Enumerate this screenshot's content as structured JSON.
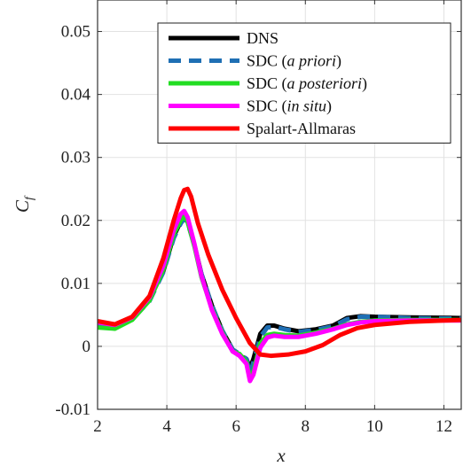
{
  "chart_data": {
    "type": "line",
    "xlabel": "x",
    "ylabel": "C_f",
    "xlim": [
      2,
      12.5
    ],
    "ylim": [
      -0.01,
      0.055
    ],
    "x_ticks": [
      2,
      4,
      6,
      8,
      10,
      12
    ],
    "x_tick_labels": [
      "2",
      "4",
      "6",
      "8",
      "10",
      "12"
    ],
    "y_ticks": [
      -0.01,
      0,
      0.01,
      0.02,
      0.03,
      0.04,
      0.05
    ],
    "y_tick_labels": [
      "-0.01",
      "0",
      "0.01",
      "0.02",
      "0.03",
      "0.04",
      "0.05"
    ],
    "grid": true,
    "legend_position": "top-right",
    "series": [
      {
        "name": "DNS",
        "name_plain": "DNS",
        "name_italic": "",
        "name_suffix": "",
        "color": "#000000",
        "dash": "solid",
        "points": [
          [
            2.0,
            0.0035
          ],
          [
            2.5,
            0.0032
          ],
          [
            3.0,
            0.0045
          ],
          [
            3.5,
            0.0075
          ],
          [
            3.9,
            0.012
          ],
          [
            4.2,
            0.0175
          ],
          [
            4.4,
            0.0198
          ],
          [
            4.5,
            0.0205
          ],
          [
            4.6,
            0.0198
          ],
          [
            4.8,
            0.016
          ],
          [
            5.0,
            0.0115
          ],
          [
            5.3,
            0.0065
          ],
          [
            5.6,
            0.0025
          ],
          [
            5.9,
            -0.0005
          ],
          [
            6.1,
            -0.0015
          ],
          [
            6.3,
            -0.002
          ],
          [
            6.4,
            -0.0035
          ],
          [
            6.5,
            -0.002
          ],
          [
            6.7,
            0.002
          ],
          [
            6.9,
            0.0033
          ],
          [
            7.1,
            0.0033
          ],
          [
            7.4,
            0.0028
          ],
          [
            7.8,
            0.0024
          ],
          [
            8.3,
            0.0027
          ],
          [
            8.8,
            0.0033
          ],
          [
            9.2,
            0.0045
          ],
          [
            9.6,
            0.0048
          ],
          [
            10.0,
            0.0047
          ],
          [
            11.0,
            0.0046
          ],
          [
            12.5,
            0.0045
          ]
        ]
      },
      {
        "name": "SDC (a priori)",
        "name_plain": "SDC (",
        "name_italic": "a priori",
        "name_suffix": ")",
        "color": "#1f6fb4",
        "dash": "dashed",
        "points": [
          [
            2.0,
            0.0032
          ],
          [
            2.5,
            0.003
          ],
          [
            3.0,
            0.0043
          ],
          [
            3.5,
            0.0072
          ],
          [
            3.9,
            0.0118
          ],
          [
            4.2,
            0.0172
          ],
          [
            4.4,
            0.0195
          ],
          [
            4.5,
            0.0203
          ],
          [
            4.6,
            0.0196
          ],
          [
            4.8,
            0.016
          ],
          [
            5.0,
            0.0115
          ],
          [
            5.3,
            0.0065
          ],
          [
            5.6,
            0.0025
          ],
          [
            5.9,
            -0.0005
          ],
          [
            6.1,
            -0.0012
          ],
          [
            6.3,
            -0.002
          ],
          [
            6.4,
            -0.0045
          ],
          [
            6.5,
            -0.0025
          ],
          [
            6.7,
            0.0015
          ],
          [
            6.9,
            0.003
          ],
          [
            7.1,
            0.0031
          ],
          [
            7.4,
            0.0027
          ],
          [
            7.8,
            0.0023
          ],
          [
            8.3,
            0.0026
          ],
          [
            8.8,
            0.0032
          ],
          [
            9.2,
            0.0043
          ],
          [
            9.6,
            0.0047
          ],
          [
            10.0,
            0.0047
          ],
          [
            11.0,
            0.0045
          ],
          [
            12.5,
            0.0044
          ]
        ]
      },
      {
        "name": "SDC (a posteriori)",
        "name_plain": "SDC (",
        "name_italic": "a posteriori",
        "name_suffix": ")",
        "color": "#22dd22",
        "dash": "solid",
        "points": [
          [
            2.0,
            0.003
          ],
          [
            2.5,
            0.0028
          ],
          [
            3.0,
            0.0042
          ],
          [
            3.5,
            0.0073
          ],
          [
            3.9,
            0.0122
          ],
          [
            4.2,
            0.0178
          ],
          [
            4.4,
            0.02
          ],
          [
            4.5,
            0.0207
          ],
          [
            4.6,
            0.0198
          ],
          [
            4.8,
            0.0158
          ],
          [
            5.0,
            0.011
          ],
          [
            5.3,
            0.006
          ],
          [
            5.6,
            0.0022
          ],
          [
            5.9,
            -0.0008
          ],
          [
            6.1,
            -0.0012
          ],
          [
            6.3,
            -0.0025
          ],
          [
            6.4,
            -0.005
          ],
          [
            6.5,
            -0.004
          ],
          [
            6.7,
            0.0005
          ],
          [
            6.9,
            0.0018
          ],
          [
            7.1,
            0.002
          ],
          [
            7.4,
            0.0018
          ],
          [
            7.8,
            0.0017
          ],
          [
            8.3,
            0.0022
          ],
          [
            8.8,
            0.0028
          ],
          [
            9.2,
            0.0035
          ],
          [
            9.6,
            0.0039
          ],
          [
            10.0,
            0.0041
          ],
          [
            11.0,
            0.0042
          ],
          [
            12.5,
            0.0042
          ]
        ]
      },
      {
        "name": "SDC (in situ)",
        "name_plain": "SDC (",
        "name_italic": "in situ",
        "name_suffix": ")",
        "color": "#ff00ff",
        "dash": "solid",
        "points": [
          [
            2.0,
            0.0038
          ],
          [
            2.5,
            0.0034
          ],
          [
            3.0,
            0.0046
          ],
          [
            3.5,
            0.0078
          ],
          [
            3.9,
            0.0128
          ],
          [
            4.2,
            0.0185
          ],
          [
            4.4,
            0.021
          ],
          [
            4.5,
            0.0215
          ],
          [
            4.6,
            0.0205
          ],
          [
            4.8,
            0.0162
          ],
          [
            5.0,
            0.0112
          ],
          [
            5.3,
            0.0058
          ],
          [
            5.6,
            0.002
          ],
          [
            5.9,
            -0.0008
          ],
          [
            6.1,
            -0.0015
          ],
          [
            6.3,
            -0.0028
          ],
          [
            6.4,
            -0.0055
          ],
          [
            6.5,
            -0.0045
          ],
          [
            6.7,
            -0.0002
          ],
          [
            6.9,
            0.0014
          ],
          [
            7.1,
            0.0017
          ],
          [
            7.4,
            0.0015
          ],
          [
            7.8,
            0.0015
          ],
          [
            8.3,
            0.002
          ],
          [
            8.8,
            0.0027
          ],
          [
            9.2,
            0.0034
          ],
          [
            9.6,
            0.0038
          ],
          [
            10.0,
            0.004
          ],
          [
            11.0,
            0.0041
          ],
          [
            12.5,
            0.0041
          ]
        ]
      },
      {
        "name": "Spalart-Allmaras",
        "name_plain": "Spalart-Allmaras",
        "name_italic": "",
        "name_suffix": "",
        "color": "#ff0000",
        "dash": "solid",
        "points": [
          [
            2.0,
            0.004
          ],
          [
            2.5,
            0.0035
          ],
          [
            3.0,
            0.0047
          ],
          [
            3.5,
            0.008
          ],
          [
            3.9,
            0.014
          ],
          [
            4.2,
            0.02
          ],
          [
            4.4,
            0.0235
          ],
          [
            4.5,
            0.0248
          ],
          [
            4.6,
            0.025
          ],
          [
            4.7,
            0.0238
          ],
          [
            4.9,
            0.0195
          ],
          [
            5.2,
            0.0145
          ],
          [
            5.6,
            0.009
          ],
          [
            6.0,
            0.0045
          ],
          [
            6.4,
            0.0005
          ],
          [
            6.7,
            -0.0013
          ],
          [
            7.0,
            -0.0015
          ],
          [
            7.5,
            -0.0013
          ],
          [
            8.0,
            -0.0008
          ],
          [
            8.5,
            0.0002
          ],
          [
            9.0,
            0.0018
          ],
          [
            9.5,
            0.0029
          ],
          [
            10.0,
            0.0034
          ],
          [
            11.0,
            0.0039
          ],
          [
            12.0,
            0.0041
          ],
          [
            12.5,
            0.0042
          ]
        ]
      }
    ]
  }
}
